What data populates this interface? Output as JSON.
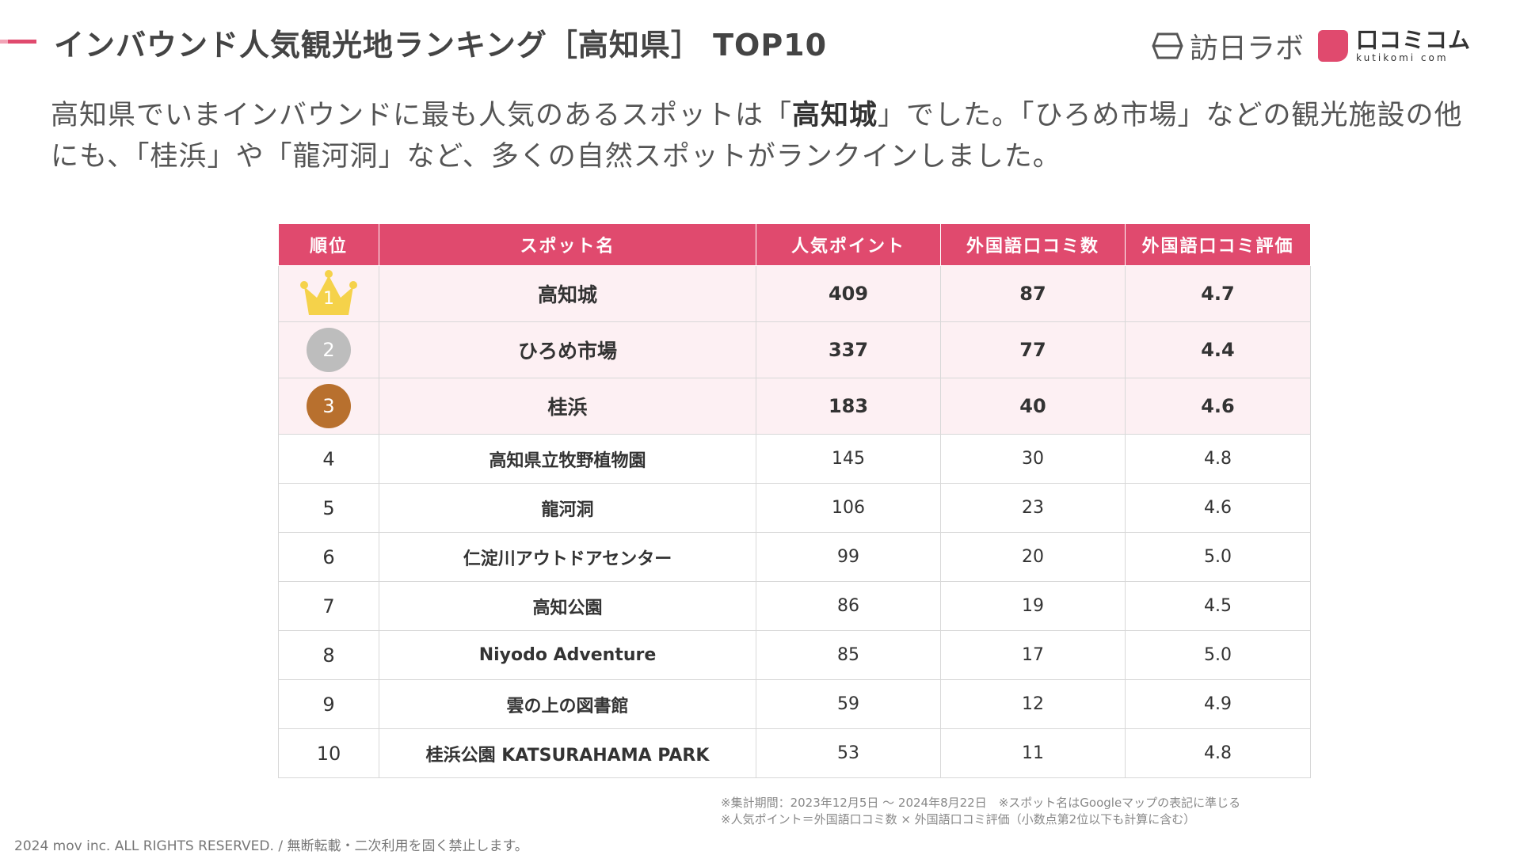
{
  "header": {
    "title": "インバウンド人気観光地ランキング［高知県］ TOP10",
    "brand_primary": "訪日ラボ",
    "brand_secondary": "口コミコム",
    "brand_secondary_sub": "kutikomi com"
  },
  "intro": {
    "part1": "高知県でいまインバウンドに最も人気のあるスポットは「",
    "highlight": "高知城",
    "part2": "」でした。「ひろめ市場」などの観光施設の他にも、「桂浜」や「龍河洞」など、多くの自然スポットがランクインしました。"
  },
  "table": {
    "headers": [
      "順位",
      "スポット名",
      "人気ポイント",
      "外国語口コミ数",
      "外国語口コミ評価"
    ],
    "rows": [
      {
        "rank": "1",
        "spot": "高知城",
        "points": "409",
        "reviews": "87",
        "rating": "4.7"
      },
      {
        "rank": "2",
        "spot": "ひろめ市場",
        "points": "337",
        "reviews": "77",
        "rating": "4.4"
      },
      {
        "rank": "3",
        "spot": "桂浜",
        "points": "183",
        "reviews": "40",
        "rating": "4.6"
      },
      {
        "rank": "4",
        "spot": "高知県立牧野植物園",
        "points": "145",
        "reviews": "30",
        "rating": "4.8"
      },
      {
        "rank": "5",
        "spot": "龍河洞",
        "points": "106",
        "reviews": "23",
        "rating": "4.6"
      },
      {
        "rank": "6",
        "spot": "仁淀川アウトドアセンター",
        "points": "99",
        "reviews": "20",
        "rating": "5.0"
      },
      {
        "rank": "7",
        "spot": "高知公園",
        "points": "86",
        "reviews": "19",
        "rating": "4.5"
      },
      {
        "rank": "8",
        "spot": "Niyodo Adventure",
        "points": "85",
        "reviews": "17",
        "rating": "5.0"
      },
      {
        "rank": "9",
        "spot": "雲の上の図書館",
        "points": "59",
        "reviews": "12",
        "rating": "4.9"
      },
      {
        "rank": "10",
        "spot": "桂浜公園 KATSURAHAMA PARK",
        "points": "53",
        "reviews": "11",
        "rating": "4.8"
      }
    ]
  },
  "notes": {
    "line1": "※集計期間：2023年12月5日 ～ 2024年8月22日　※スポット名はGoogleマップの表記に準じる",
    "line2": "※人気ポイント＝外国語口コミ数 × 外国語口コミ評価（小数点第2位以下も計算に含む）"
  },
  "footer": {
    "copyright": "2024 mov inc. ALL RIGHTS RESERVED. / 無断転載・二次利用を固く禁止します。"
  },
  "colors": {
    "accent": "#e04a6e",
    "top3_row_bg": "#fdf0f3",
    "gold": "#f5d24a",
    "silver": "#bdbdbd",
    "bronze": "#b8702e"
  },
  "icons": {
    "rank1": "gold-crown-icon",
    "rank2": "silver-medal-icon",
    "rank3": "bronze-medal-icon",
    "brand_primary": "houjin-labo-logo-icon",
    "brand_secondary": "kuchikomi-speech-bubble-icon"
  }
}
